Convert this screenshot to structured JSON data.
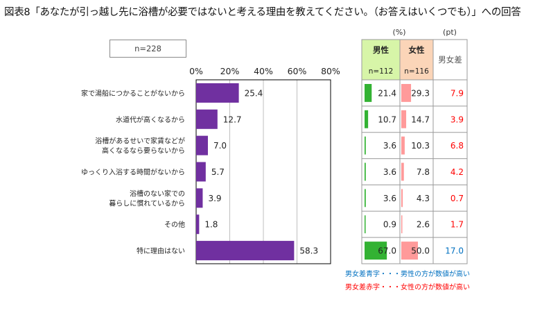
{
  "title": "図表8「あなたが引っ越し先に浴槽が必要ではないと考える理由を教えてください。（お答えはいくつでも）」への回答",
  "n_label": "n=228",
  "units": {
    "percent": "(%)",
    "pt": "(pt)"
  },
  "table_headers": {
    "male": "男性",
    "male_n": "n=112",
    "female": "女性",
    "female_n": "n=116",
    "diff": "男女差"
  },
  "notes": {
    "blue": "男女差青字・・・男性の方が数値が高い",
    "red": "男女差赤字・・・女性の方が数値が高い"
  },
  "colors": {
    "bar": "#7030a0",
    "male_bar": "#33b233",
    "female_bar": "#ff9a9a",
    "male_header": "#d7f5a8",
    "female_header": "#fbd5b8",
    "diff_red": "#ff0000",
    "diff_blue": "#0070c0"
  },
  "chart_data": {
    "type": "bar",
    "orientation": "horizontal",
    "xlim": [
      0,
      80
    ],
    "x_ticks": [
      "0%",
      "20%",
      "40%",
      "60%",
      "80%"
    ],
    "grid": true,
    "categories": [
      "家で湯船につかることがないから",
      "水道代が高くなるから",
      "浴槽があるせいで家賃などが\n高くなるなら要らないから",
      "ゆっくり入浴する時間がないから",
      "浴槽のない家での\n暮らしに慣れているから",
      "その他",
      "特に理由はない"
    ],
    "values": [
      25.4,
      12.7,
      7.0,
      5.7,
      3.9,
      1.8,
      58.3
    ],
    "value_labels": [
      "25.4",
      "12.7",
      "7.0",
      "5.7",
      "3.9",
      "1.8",
      "58.3"
    ],
    "table": {
      "male": [
        21.4,
        10.7,
        3.6,
        3.6,
        3.6,
        0.9,
        67.0
      ],
      "male_labels": [
        "21.4",
        "10.7",
        "3.6",
        "3.6",
        "3.6",
        "0.9",
        "67.0"
      ],
      "female": [
        29.3,
        14.7,
        10.3,
        7.8,
        4.3,
        2.6,
        50.0
      ],
      "female_labels": [
        "29.3",
        "14.7",
        "10.3",
        "7.8",
        "4.3",
        "2.6",
        "50.0"
      ],
      "diff_labels": [
        "7.9",
        "3.9",
        "6.8",
        "4.2",
        "0.7",
        "1.7",
        "17.0"
      ],
      "diff_higher": [
        "female",
        "female",
        "female",
        "female",
        "female",
        "female",
        "male"
      ]
    }
  }
}
